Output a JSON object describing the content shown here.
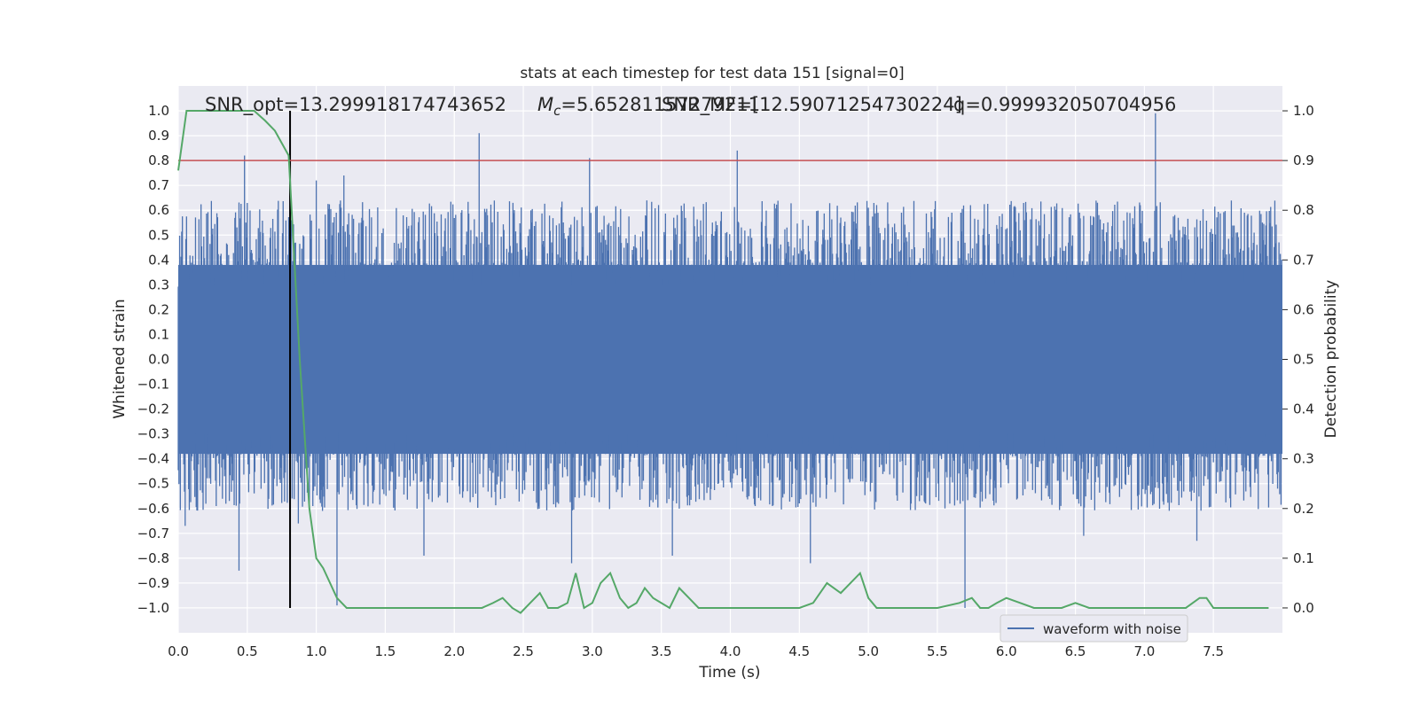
{
  "chart_data": {
    "type": "line",
    "title": "stats at each timestep for test data 151 [signal=0]",
    "xlabel": "Time (s)",
    "ylabel_left": "Whitened strain",
    "ylabel_right": "Detection probability",
    "xlim": [
      0.0,
      8.0
    ],
    "ylim_left": [
      -1.1,
      1.1
    ],
    "ylim_right": [
      -0.05,
      1.05
    ],
    "grid": true,
    "x_ticks": [
      "0.0",
      "0.5",
      "1.0",
      "1.5",
      "2.0",
      "2.5",
      "3.0",
      "3.5",
      "4.0",
      "4.5",
      "5.0",
      "5.5",
      "6.0",
      "6.5",
      "7.0",
      "7.5"
    ],
    "x_tick_values": [
      0.0,
      0.5,
      1.0,
      1.5,
      2.0,
      2.5,
      3.0,
      3.5,
      4.0,
      4.5,
      5.0,
      5.5,
      6.0,
      6.5,
      7.0,
      7.5
    ],
    "y_ticks_left": [
      "1.0",
      "0.9",
      "0.8",
      "0.7",
      "0.6",
      "0.5",
      "0.4",
      "0.3",
      "0.2",
      "0.1",
      "0.0",
      "−0.1",
      "−0.2",
      "−0.3",
      "−0.4",
      "−0.5",
      "−0.6",
      "−0.7",
      "−0.8",
      "−0.9",
      "−1.0"
    ],
    "y_tick_values_left": [
      1.0,
      0.9,
      0.8,
      0.7,
      0.6,
      0.5,
      0.4,
      0.3,
      0.2,
      0.1,
      0.0,
      -0.1,
      -0.2,
      -0.3,
      -0.4,
      -0.5,
      -0.6,
      -0.7,
      -0.8,
      -0.9,
      -1.0
    ],
    "y_ticks_right": [
      "1.0",
      "0.9",
      "0.8",
      "0.7",
      "0.6",
      "0.5",
      "0.4",
      "0.3",
      "0.2",
      "0.1",
      "0.0"
    ],
    "y_tick_values_right": [
      1.0,
      0.9,
      0.8,
      0.7,
      0.6,
      0.5,
      0.4,
      0.3,
      0.2,
      0.1,
      0.0
    ],
    "annotations": {
      "snr_opt": "SNR_opt=13.299918174743652",
      "mc_symbol": "M",
      "mc_sub": "c",
      "mc_value": "=5.65281157279211",
      "snr_mf": "SNR_MF=[12.59071254730224]",
      "q": "q=0.999932050704956"
    },
    "legend": {
      "location": "lower right",
      "entries": [
        "waveform with noise"
      ]
    },
    "threshold_line": {
      "value": 0.9,
      "axis": "right",
      "color": "#c44e52"
    },
    "marker_line": {
      "x": 0.81,
      "color": "#000000"
    },
    "series": [
      {
        "name": "waveform with noise",
        "axis": "left",
        "color": "#4c72b0",
        "style": "dense noise waveform",
        "sample_count": 1600,
        "core_amplitude": 0.39,
        "spikes": [
          {
            "x": 0.48,
            "y": 0.82
          },
          {
            "x": 0.44,
            "y": -0.85
          },
          {
            "x": 2.18,
            "y": 0.91
          },
          {
            "x": 2.98,
            "y": 0.81
          },
          {
            "x": 4.05,
            "y": 0.84
          },
          {
            "x": 7.08,
            "y": 0.99
          },
          {
            "x": 5.7,
            "y": -1.0
          },
          {
            "x": 1.15,
            "y": -0.99
          },
          {
            "x": 2.85,
            "y": -0.82
          },
          {
            "x": 1.78,
            "y": -0.79
          },
          {
            "x": 3.58,
            "y": -0.79
          },
          {
            "x": 4.58,
            "y": -0.82
          },
          {
            "x": 0.05,
            "y": -0.67
          },
          {
            "x": 7.38,
            "y": -0.73
          },
          {
            "x": 6.56,
            "y": -0.71
          },
          {
            "x": 1.0,
            "y": 0.72
          },
          {
            "x": 1.2,
            "y": 0.74
          },
          {
            "x": 0.87,
            "y": -0.66
          }
        ]
      },
      {
        "name": "detection probability",
        "axis": "right",
        "color": "#55a868",
        "x": [
          0.0,
          0.06,
          0.2,
          0.4,
          0.55,
          0.63,
          0.7,
          0.8,
          0.88,
          0.95,
          1.0,
          1.05,
          1.15,
          1.22,
          1.3,
          1.4,
          1.5,
          1.7,
          1.9,
          2.05,
          2.2,
          2.28,
          2.35,
          2.42,
          2.48,
          2.55,
          2.62,
          2.68,
          2.75,
          2.82,
          2.88,
          2.94,
          3.0,
          3.06,
          3.13,
          3.2,
          3.26,
          3.32,
          3.38,
          3.44,
          3.5,
          3.56,
          3.63,
          3.7,
          3.77,
          3.85,
          3.95,
          4.1,
          4.3,
          4.5,
          4.6,
          4.7,
          4.8,
          4.87,
          4.94,
          5.0,
          5.06,
          5.12,
          5.3,
          5.5,
          5.66,
          5.75,
          5.81,
          5.87,
          5.93,
          6.0,
          6.1,
          6.2,
          6.3,
          6.4,
          6.5,
          6.6,
          6.7,
          6.8,
          6.9,
          7.0,
          7.1,
          7.2,
          7.3,
          7.4,
          7.45,
          7.5,
          7.55,
          7.6,
          7.7,
          7.8,
          7.9
        ],
        "y": [
          0.88,
          1.0,
          1.0,
          1.0,
          1.0,
          0.98,
          0.96,
          0.91,
          0.5,
          0.2,
          0.1,
          0.08,
          0.02,
          0.0,
          0.0,
          -0.0,
          0.0,
          0.0,
          0.0,
          0.0,
          0.0,
          0.01,
          0.02,
          0.0,
          -0.01,
          0.01,
          0.03,
          0.0,
          0.0,
          0.01,
          0.07,
          0.0,
          0.01,
          0.05,
          0.07,
          0.02,
          0.0,
          0.01,
          0.04,
          0.02,
          0.01,
          0.0,
          0.04,
          0.02,
          0.0,
          0.0,
          0.0,
          0.0,
          0.0,
          0.0,
          0.01,
          0.05,
          0.03,
          0.05,
          0.07,
          0.02,
          0.0,
          0.0,
          0.0,
          0.0,
          0.01,
          0.02,
          0.0,
          0.0,
          0.01,
          0.02,
          0.01,
          0.0,
          0.0,
          0.0,
          0.01,
          0.0,
          0.0,
          0.0,
          0.0,
          0.0,
          0.0,
          0.0,
          0.0,
          0.02,
          0.02,
          0.0,
          0.0,
          0.0,
          0.0,
          0.0,
          0.0
        ]
      }
    ]
  }
}
